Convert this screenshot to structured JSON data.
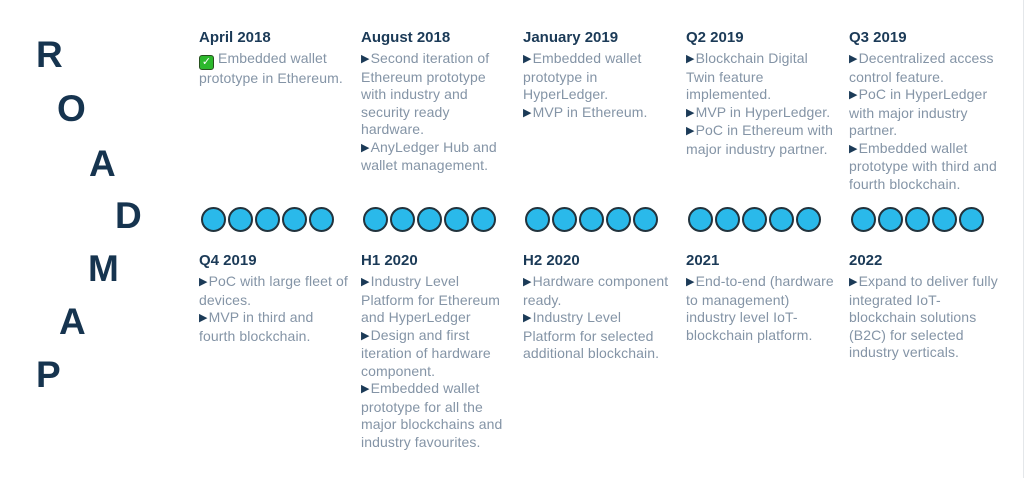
{
  "page": {
    "title_letters": [
      "R",
      "O",
      "A",
      "D",
      "M",
      "A",
      "P"
    ]
  },
  "colors": {
    "navy": "#1b3a57",
    "body_gray": "#8494a6",
    "dot_fill": "#2ab9ea",
    "dot_border": "#22333d",
    "check_green": "#2cb82c"
  },
  "columns": [
    {
      "top": {
        "date": "April 2018",
        "items": [
          {
            "icon": "check",
            "text": "Embedded wallet prototype in Ethereum."
          }
        ]
      },
      "dots": 5,
      "bottom": {
        "date": "Q4 2019",
        "items": [
          {
            "icon": "arrow",
            "text": "PoC with large fleet of devices."
          },
          {
            "icon": "arrow",
            "text": "MVP in third and fourth blockchain."
          }
        ]
      }
    },
    {
      "top": {
        "date": "August 2018",
        "items": [
          {
            "icon": "arrow",
            "text": "Second iteration of Ethereum prototype with industry and security ready hardware."
          },
          {
            "icon": "arrow",
            "text": "AnyLedger Hub and wallet management."
          }
        ]
      },
      "dots": 5,
      "bottom": {
        "date": "H1 2020",
        "items": [
          {
            "icon": "arrow",
            "text": "Industry Level Platform for Ethereum and HyperLedger"
          },
          {
            "icon": "arrow",
            "text": "Design and first iteration of hardware component."
          },
          {
            "icon": "arrow",
            "text": "Embedded wallet prototype for all the major blockchains and industry favourites."
          }
        ]
      }
    },
    {
      "top": {
        "date": "January 2019",
        "items": [
          {
            "icon": "arrow",
            "text": "Embedded wallet prototype in HyperLedger."
          },
          {
            "icon": "arrow",
            "text": "MVP in Ethereum."
          }
        ]
      },
      "dots": 5,
      "bottom": {
        "date": "H2 2020",
        "items": [
          {
            "icon": "arrow",
            "text": "Hardware component ready."
          },
          {
            "icon": "arrow",
            "text": "Industry Level Platform for selected additional blockchain."
          }
        ]
      }
    },
    {
      "top": {
        "date": "Q2 2019",
        "items": [
          {
            "icon": "arrow",
            "text": "Blockchain Digital Twin feature implemented."
          },
          {
            "icon": "arrow",
            "text": "MVP in HyperLedger."
          },
          {
            "icon": "arrow",
            "text": "PoC in Ethereum with major industry partner."
          }
        ]
      },
      "dots": 5,
      "bottom": {
        "date": "2021",
        "items": [
          {
            "icon": "arrow",
            "text": "End-to-end (hardware to management) industry level IoT-blockchain platform."
          }
        ]
      }
    },
    {
      "top": {
        "date": "Q3 2019",
        "items": [
          {
            "icon": "arrow",
            "text": "Decentralized access control feature."
          },
          {
            "icon": "arrow",
            "text": "PoC in HyperLedger with major industry partner."
          },
          {
            "icon": "arrow",
            "text": "Embedded wallet prototype with third and fourth blockchain."
          }
        ]
      },
      "dots": 5,
      "bottom": {
        "date": "2022",
        "items": [
          {
            "icon": "arrow",
            "text": "Expand to deliver fully integrated IoT-blockchain solutions (B2C) for selected industry verticals."
          }
        ]
      }
    }
  ]
}
